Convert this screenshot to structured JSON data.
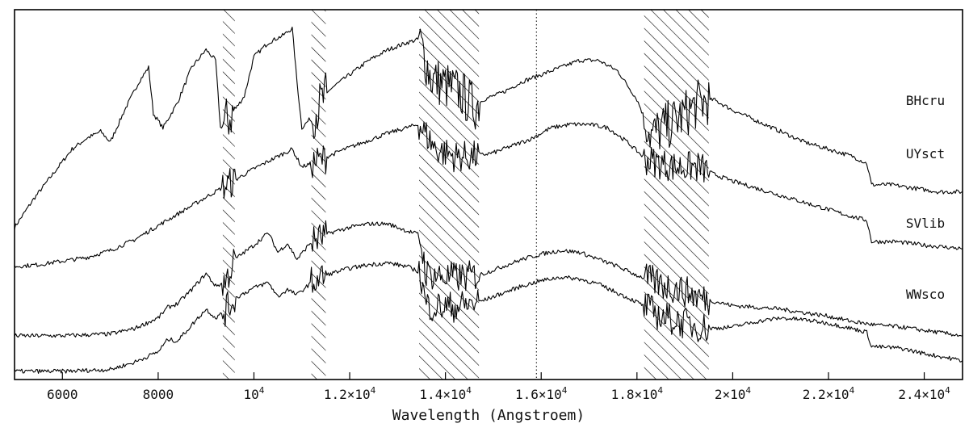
{
  "chart_data": {
    "type": "line",
    "xlabel": "Wavelength (Angstroem)",
    "ylabel": "",
    "title": "",
    "xlim": [
      5000,
      24800
    ],
    "x_ticks": [
      {
        "value": 6000,
        "label": "6000",
        "exp": ""
      },
      {
        "value": 8000,
        "label": "8000",
        "exp": ""
      },
      {
        "value": 10000,
        "label": "10",
        "exp": "4"
      },
      {
        "value": 12000,
        "label": "1.2×10",
        "exp": "4"
      },
      {
        "value": 14000,
        "label": "1.4×10",
        "exp": "4"
      },
      {
        "value": 16000,
        "label": "1.6×10",
        "exp": "4"
      },
      {
        "value": 18000,
        "label": "1.8×10",
        "exp": "4"
      },
      {
        "value": 20000,
        "label": "2×10",
        "exp": "4"
      },
      {
        "value": 22000,
        "label": "2.2×10",
        "exp": "4"
      },
      {
        "value": 24000,
        "label": "2.4×10",
        "exp": "4"
      }
    ],
    "hatched_regions": [
      [
        9350,
        9600
      ],
      [
        11200,
        11500
      ],
      [
        13450,
        14700
      ],
      [
        18150,
        19500
      ]
    ],
    "dotted_reference": 15900,
    "series": [
      {
        "name": "BHcru",
        "points": [
          [
            5000,
            4.1
          ],
          [
            5400,
            4.9
          ],
          [
            5800,
            5.6
          ],
          [
            6200,
            6.3
          ],
          [
            6500,
            6.6
          ],
          [
            6800,
            6.8
          ],
          [
            7000,
            6.5
          ],
          [
            7300,
            7.4
          ],
          [
            7600,
            8.2
          ],
          [
            7800,
            8.6
          ],
          [
            7900,
            7.3
          ],
          [
            8100,
            6.9
          ],
          [
            8400,
            7.6
          ],
          [
            8700,
            8.6
          ],
          [
            9000,
            9.1
          ],
          [
            9200,
            8.8
          ],
          [
            9300,
            6.9
          ],
          [
            9500,
            7.2
          ],
          [
            9800,
            7.8
          ],
          [
            10000,
            8.9
          ],
          [
            10300,
            9.3
          ],
          [
            10600,
            9.5
          ],
          [
            10800,
            9.7
          ],
          [
            10900,
            8.2
          ],
          [
            11000,
            6.9
          ],
          [
            11200,
            7.2
          ],
          [
            11600,
            8.0
          ],
          [
            12000,
            8.4
          ],
          [
            12400,
            8.8
          ],
          [
            12800,
            9.1
          ],
          [
            13200,
            9.3
          ],
          [
            13450,
            9.4
          ],
          [
            13700,
            8.3
          ],
          [
            14000,
            8.1
          ],
          [
            14300,
            7.9
          ],
          [
            14600,
            7.5
          ],
          [
            14800,
            7.7
          ],
          [
            15200,
            7.9
          ],
          [
            15600,
            8.2
          ],
          [
            16000,
            8.4
          ],
          [
            16400,
            8.6
          ],
          [
            16800,
            8.8
          ],
          [
            17200,
            8.8
          ],
          [
            17600,
            8.5
          ],
          [
            18000,
            7.7
          ],
          [
            18300,
            6.7
          ],
          [
            18800,
            7.1
          ],
          [
            19300,
            7.6
          ],
          [
            19600,
            7.7
          ],
          [
            20000,
            7.4
          ],
          [
            20500,
            7.1
          ],
          [
            21000,
            6.8
          ],
          [
            21500,
            6.5
          ],
          [
            22000,
            6.3
          ],
          [
            22500,
            6.1
          ],
          [
            22800,
            5.9
          ],
          [
            22900,
            5.3
          ],
          [
            23300,
            5.3
          ],
          [
            23800,
            5.2
          ],
          [
            24300,
            5.1
          ],
          [
            24800,
            5.1
          ]
        ]
      },
      {
        "name": "UYsct",
        "points": [
          [
            5000,
            3.0
          ],
          [
            5500,
            3.05
          ],
          [
            6000,
            3.15
          ],
          [
            6500,
            3.25
          ],
          [
            7000,
            3.45
          ],
          [
            7500,
            3.75
          ],
          [
            8000,
            4.15
          ],
          [
            8500,
            4.55
          ],
          [
            9000,
            4.95
          ],
          [
            9500,
            5.35
          ],
          [
            10000,
            5.75
          ],
          [
            10500,
            6.1
          ],
          [
            10800,
            6.3
          ],
          [
            11000,
            5.8
          ],
          [
            11300,
            5.95
          ],
          [
            11800,
            6.25
          ],
          [
            12300,
            6.5
          ],
          [
            12800,
            6.75
          ],
          [
            13300,
            6.95
          ],
          [
            13450,
            7.0
          ],
          [
            13800,
            6.3
          ],
          [
            14200,
            6.1
          ],
          [
            14600,
            6.1
          ],
          [
            15000,
            6.2
          ],
          [
            15400,
            6.4
          ],
          [
            15800,
            6.6
          ],
          [
            16200,
            6.9
          ],
          [
            16600,
            7.0
          ],
          [
            17000,
            7.0
          ],
          [
            17400,
            6.9
          ],
          [
            17800,
            6.5
          ],
          [
            18200,
            6.0
          ],
          [
            18800,
            5.8
          ],
          [
            19300,
            5.8
          ],
          [
            19600,
            5.6
          ],
          [
            20000,
            5.4
          ],
          [
            20500,
            5.2
          ],
          [
            21000,
            5.0
          ],
          [
            21500,
            4.8
          ],
          [
            22000,
            4.6
          ],
          [
            22500,
            4.4
          ],
          [
            22800,
            4.3
          ],
          [
            22900,
            3.7
          ],
          [
            23400,
            3.7
          ],
          [
            24000,
            3.6
          ],
          [
            24800,
            3.5
          ]
        ]
      },
      {
        "name": "SVlib",
        "points": [
          [
            5000,
            1.05
          ],
          [
            6000,
            1.05
          ],
          [
            7000,
            1.1
          ],
          [
            7500,
            1.25
          ],
          [
            8000,
            1.55
          ],
          [
            8200,
            1.85
          ],
          [
            8400,
            1.95
          ],
          [
            8700,
            2.35
          ],
          [
            9000,
            2.8
          ],
          [
            9200,
            2.45
          ],
          [
            9400,
            2.55
          ],
          [
            9600,
            3.2
          ],
          [
            10000,
            3.6
          ],
          [
            10300,
            3.95
          ],
          [
            10500,
            3.4
          ],
          [
            10700,
            3.65
          ],
          [
            10900,
            3.2
          ],
          [
            11200,
            3.7
          ],
          [
            11600,
            3.95
          ],
          [
            12000,
            4.1
          ],
          [
            12400,
            4.2
          ],
          [
            12800,
            4.2
          ],
          [
            13200,
            4.0
          ],
          [
            13450,
            3.9
          ],
          [
            13600,
            2.8
          ],
          [
            14000,
            2.7
          ],
          [
            14400,
            2.7
          ],
          [
            14800,
            2.8
          ],
          [
            15200,
            3.0
          ],
          [
            15600,
            3.2
          ],
          [
            16000,
            3.35
          ],
          [
            16400,
            3.45
          ],
          [
            16800,
            3.4
          ],
          [
            17200,
            3.2
          ],
          [
            17600,
            3.0
          ],
          [
            18000,
            2.75
          ],
          [
            18500,
            2.5
          ],
          [
            19000,
            2.3
          ],
          [
            19500,
            2.05
          ],
          [
            20000,
            1.9
          ],
          [
            20500,
            1.85
          ],
          [
            21000,
            1.8
          ],
          [
            21500,
            1.7
          ],
          [
            22000,
            1.6
          ],
          [
            22500,
            1.45
          ],
          [
            23000,
            1.35
          ],
          [
            23500,
            1.3
          ],
          [
            24000,
            1.2
          ],
          [
            24800,
            1.05
          ]
        ]
      },
      {
        "name": "WWsco",
        "points": [
          [
            5000,
            0.05
          ],
          [
            6000,
            0.05
          ],
          [
            7000,
            0.1
          ],
          [
            7500,
            0.3
          ],
          [
            8000,
            0.6
          ],
          [
            8200,
            0.95
          ],
          [
            8400,
            0.9
          ],
          [
            8700,
            1.35
          ],
          [
            9000,
            1.8
          ],
          [
            9200,
            1.55
          ],
          [
            9400,
            1.75
          ],
          [
            9600,
            2.1
          ],
          [
            10000,
            2.4
          ],
          [
            10300,
            2.55
          ],
          [
            10500,
            2.15
          ],
          [
            10700,
            2.35
          ],
          [
            10900,
            2.2
          ],
          [
            11200,
            2.55
          ],
          [
            11600,
            2.8
          ],
          [
            12000,
            2.95
          ],
          [
            12400,
            3.05
          ],
          [
            12800,
            3.1
          ],
          [
            13200,
            3.0
          ],
          [
            13450,
            2.85
          ],
          [
            13600,
            1.9
          ],
          [
            14000,
            1.85
          ],
          [
            14400,
            1.9
          ],
          [
            14800,
            2.05
          ],
          [
            15200,
            2.25
          ],
          [
            15600,
            2.45
          ],
          [
            16000,
            2.6
          ],
          [
            16400,
            2.7
          ],
          [
            16800,
            2.65
          ],
          [
            17200,
            2.5
          ],
          [
            17600,
            2.25
          ],
          [
            18000,
            2.0
          ],
          [
            18500,
            1.6
          ],
          [
            19000,
            1.4
          ],
          [
            19500,
            1.25
          ],
          [
            20000,
            1.3
          ],
          [
            20500,
            1.45
          ],
          [
            21000,
            1.55
          ],
          [
            21500,
            1.5
          ],
          [
            22000,
            1.4
          ],
          [
            22500,
            1.25
          ],
          [
            22800,
            1.15
          ],
          [
            22900,
            0.75
          ],
          [
            23500,
            0.7
          ],
          [
            24000,
            0.55
          ],
          [
            24800,
            0.35
          ]
        ]
      }
    ]
  }
}
